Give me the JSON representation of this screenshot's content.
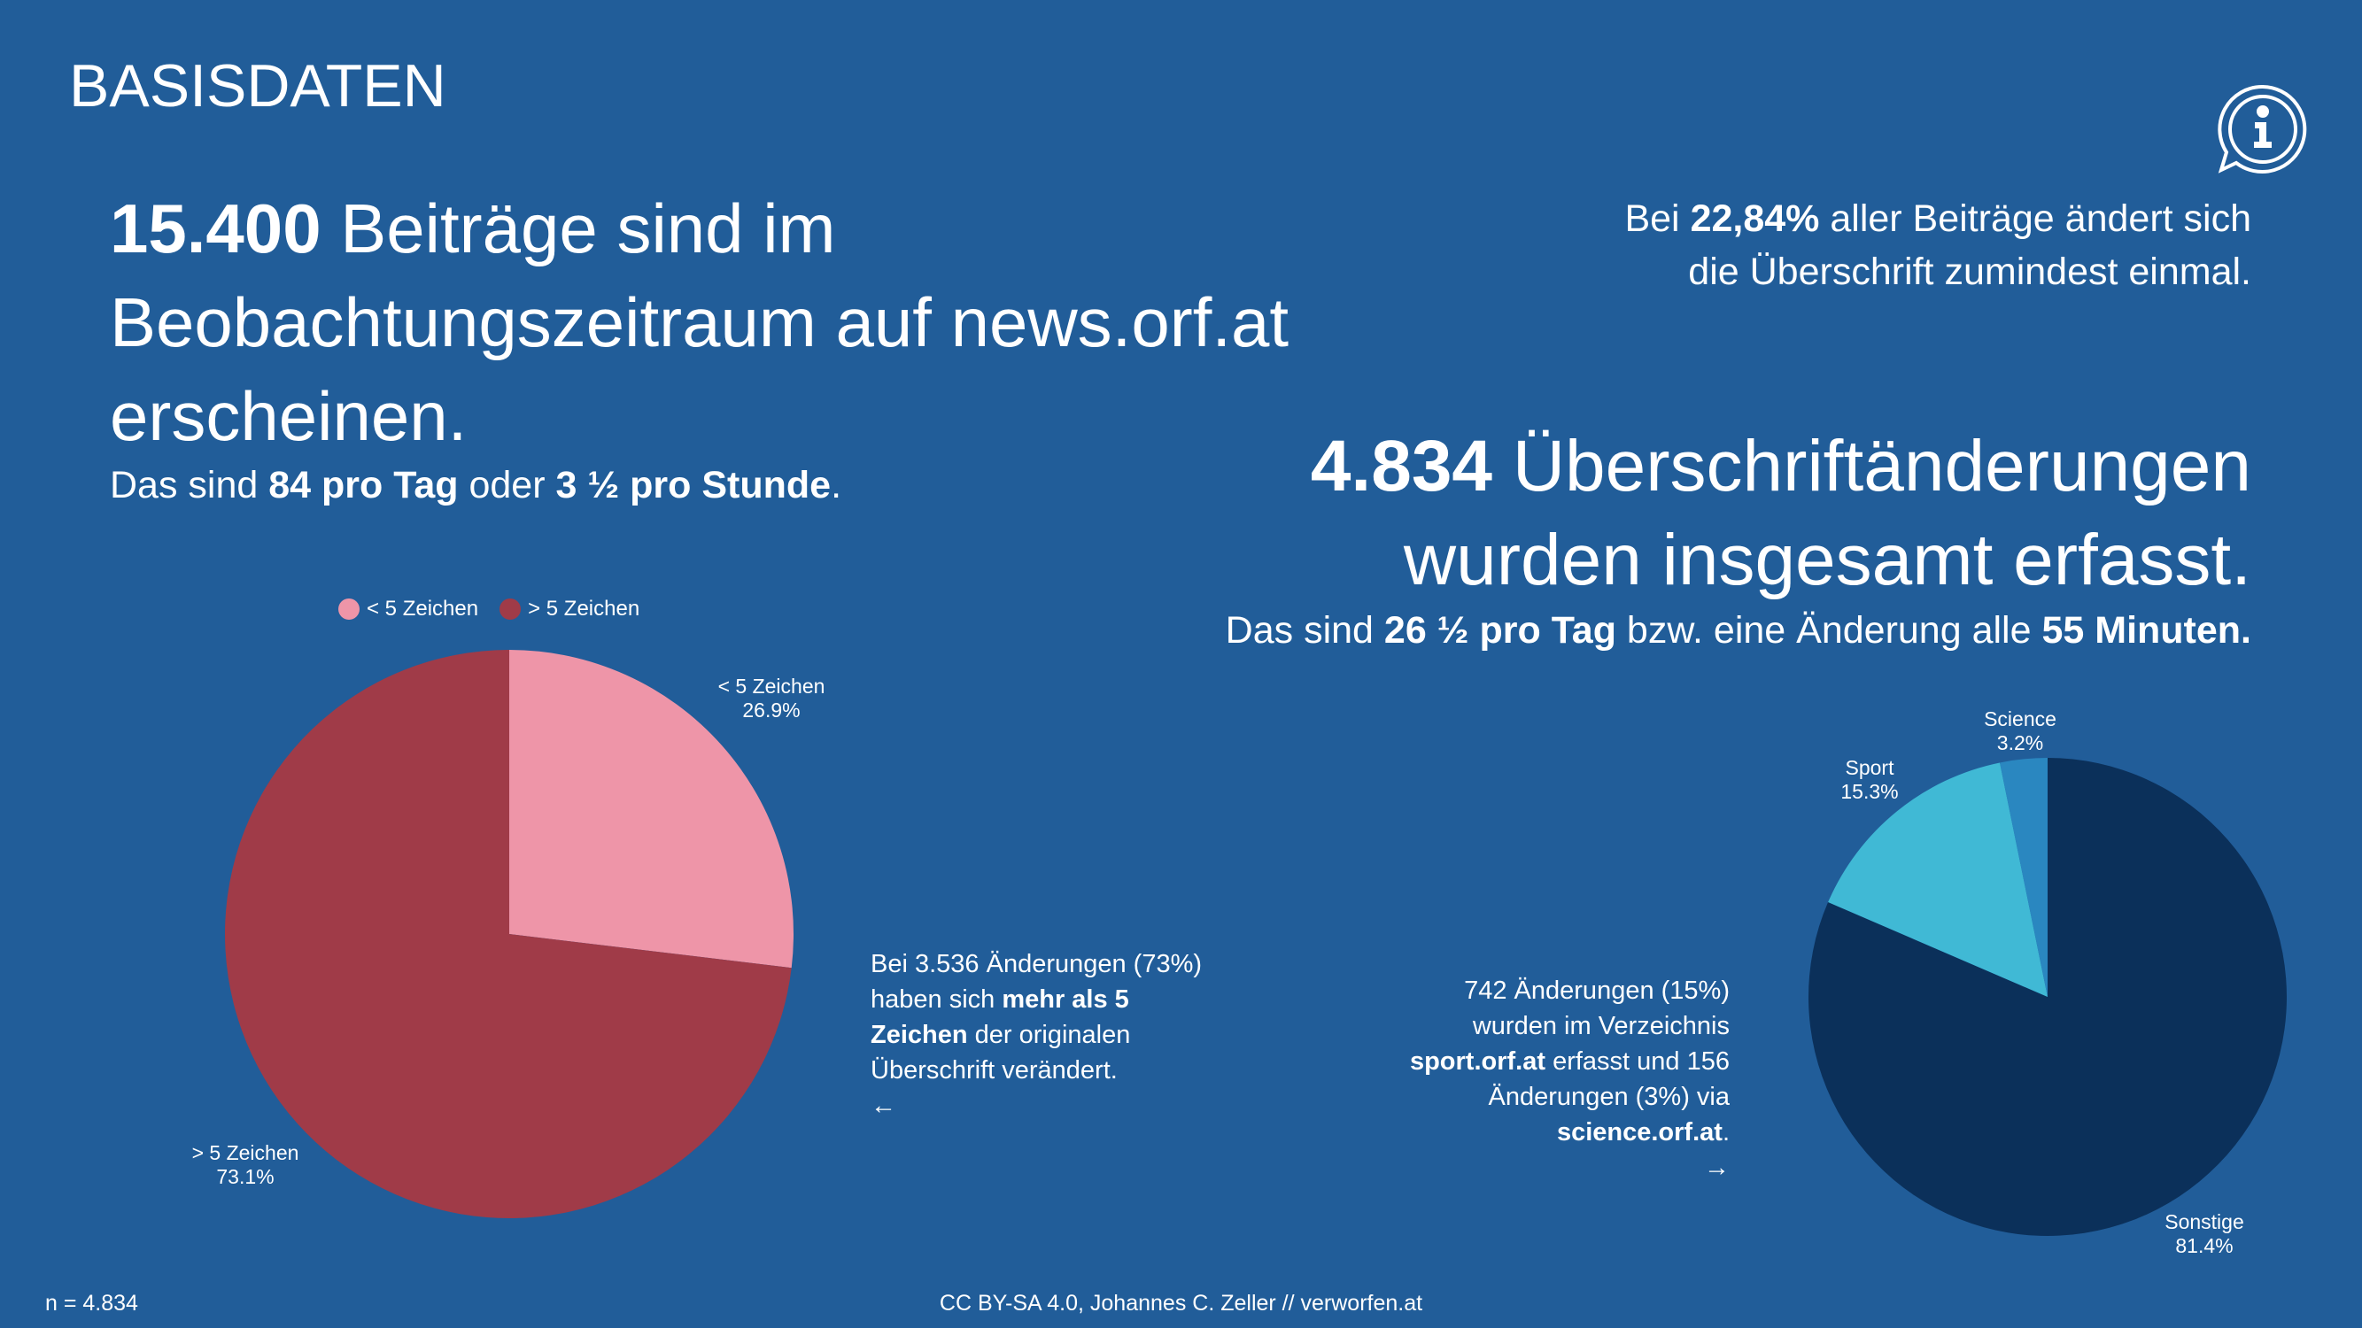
{
  "title": "BASISDATEN",
  "left": {
    "headline_bold": "15.400",
    "headline_rest1": " Beiträge sind im",
    "headline_line2": "Beobachtungszeitraum auf news.orf.at",
    "headline_line3": "erscheinen.",
    "sub": [
      "Das sind ",
      "84 pro Tag",
      " oder ",
      "3 ½ pro Stunde",
      "."
    ],
    "note": [
      "Bei 3.536 Änderungen (73%)",
      "haben sich ",
      "mehr als 5",
      "Zeichen",
      " der originalen",
      "Überschrift verändert.",
      "←"
    ]
  },
  "right": {
    "top": [
      "Bei ",
      "22,84%",
      " aller Beiträge ändert sich",
      "die Überschrift zumindest einmal."
    ],
    "headline_bold": "4.834",
    "headline_rest1": " Überschriftänderungen",
    "headline_line2": "wurden insgesamt erfasst.",
    "sub": [
      "Das sind ",
      "26 ½ pro Tag",
      " bzw. eine Änderung alle ",
      "55 Minuten."
    ],
    "note": [
      "742 Änderungen (15%)",
      "wurden im Verzeichnis",
      "sport.orf.at",
      " erfasst und 156",
      "Änderungen (3%) via",
      "science.orf.at",
      ".",
      "→"
    ]
  },
  "info_icon": "info-speech-bubble-icon",
  "footer": {
    "n": "n = 4.834",
    "license": "CC BY-SA 4.0",
    "credit": ", Johannes C. Zeller // verworfen.at"
  },
  "chart_data": [
    {
      "type": "pie",
      "legend_position": "top",
      "categories": [
        "< 5 Zeichen",
        "> 5 Zeichen"
      ],
      "values": [
        26.9,
        73.1
      ],
      "labels": [
        "26.9%",
        "73.1%"
      ],
      "colors": [
        "#ee95a8",
        "#a03b48"
      ]
    },
    {
      "type": "pie",
      "categories": [
        "Sonstige",
        "Sport",
        "Science"
      ],
      "values": [
        81.4,
        15.3,
        3.2
      ],
      "labels": [
        "81.4%",
        "15.3%",
        "3.2%"
      ],
      "colors": [
        "#0b305a",
        "#40b9d5",
        "#2a87c0"
      ]
    }
  ]
}
